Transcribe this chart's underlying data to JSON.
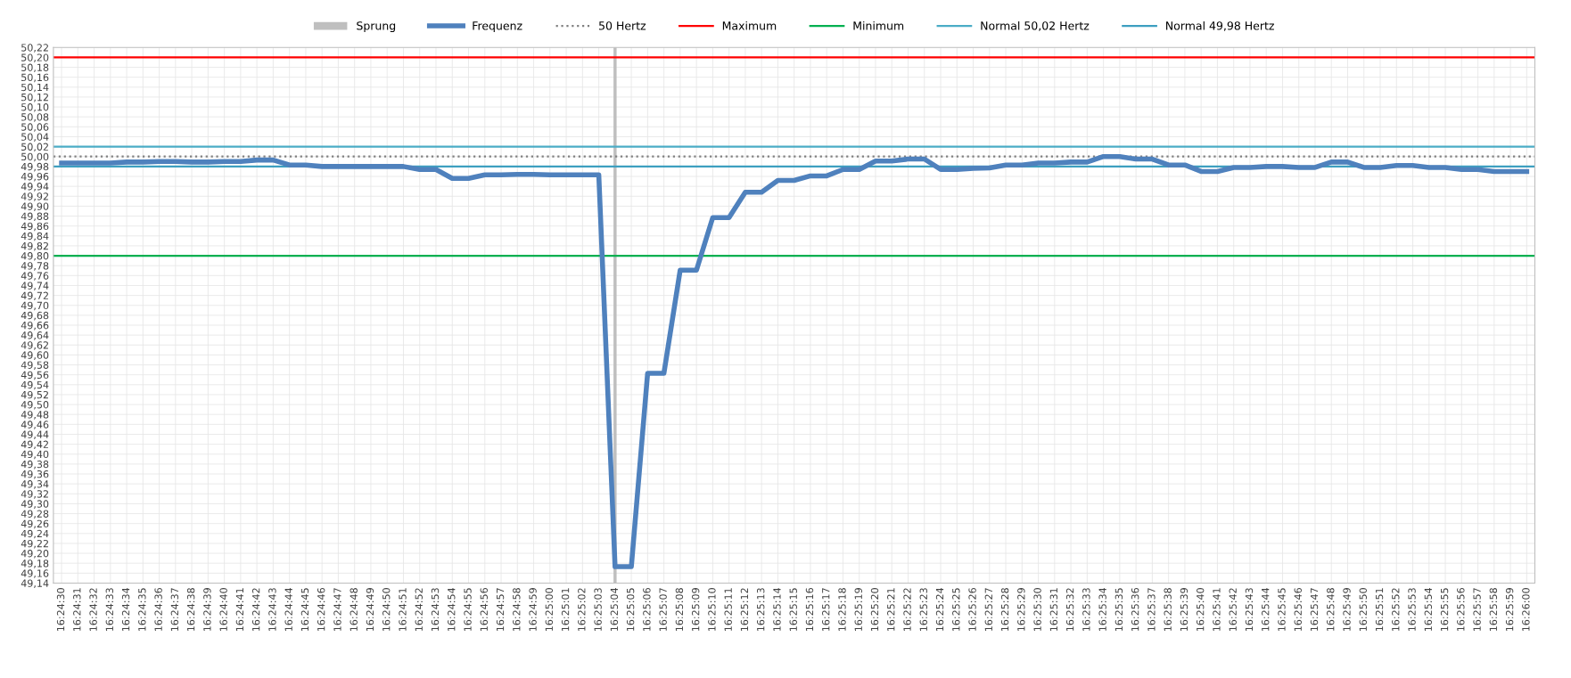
{
  "chart_data": {
    "type": "line",
    "categories": [
      "16:24:30",
      "16:24:31",
      "16:24:32",
      "16:24:33",
      "16:24:34",
      "16:24:35",
      "16:24:36",
      "16:24:37",
      "16:24:38",
      "16:24:39",
      "16:24:40",
      "16:24:41",
      "16:24:42",
      "16:24:43",
      "16:24:44",
      "16:24:45",
      "16:24:46",
      "16:24:47",
      "16:24:48",
      "16:24:49",
      "16:24:50",
      "16:24:51",
      "16:24:52",
      "16:24:53",
      "16:24:54",
      "16:24:55",
      "16:24:56",
      "16:24:57",
      "16:24:58",
      "16:24:59",
      "16:25:00",
      "16:25:01",
      "16:25:02",
      "16:25:03",
      "16:25:04",
      "16:25:05",
      "16:25:06",
      "16:25:07",
      "16:25:08",
      "16:25:09",
      "16:25:10",
      "16:25:11",
      "16:25:12",
      "16:25:13",
      "16:25:14",
      "16:25:15",
      "16:25:16",
      "16:25:17",
      "16:25:18",
      "16:25:19",
      "16:25:20",
      "16:25:21",
      "16:25:22",
      "16:25:23",
      "16:25:24",
      "16:25:25",
      "16:25:26",
      "16:25:27",
      "16:25:28",
      "16:25:29",
      "16:25:30",
      "16:25:31",
      "16:25:32",
      "16:25:33",
      "16:25:34",
      "16:25:35",
      "16:25:36",
      "16:25:37",
      "16:25:38",
      "16:25:39",
      "16:25:40",
      "16:25:41",
      "16:25:42",
      "16:25:43",
      "16:25:44",
      "16:25:45",
      "16:25:46",
      "16:25:47",
      "16:25:48",
      "16:25:49",
      "16:25:50",
      "16:25:51",
      "16:25:52",
      "16:25:53",
      "16:25:54",
      "16:25:55",
      "16:25:56",
      "16:25:57",
      "16:25:58",
      "16:25:59",
      "16:26:00"
    ],
    "series": [
      {
        "name": "Frequenz",
        "color": "#4f81bd",
        "values": [
          49.987,
          49.987,
          49.987,
          49.987,
          49.989,
          49.989,
          49.99,
          49.99,
          49.989,
          49.989,
          49.99,
          49.99,
          49.993,
          49.993,
          49.983,
          49.983,
          49.98,
          49.98,
          49.98,
          49.98,
          49.98,
          49.98,
          49.974,
          49.974,
          49.956,
          49.956,
          49.963,
          49.963,
          49.964,
          49.964,
          49.963,
          49.963,
          49.963,
          49.963,
          49.173,
          49.173,
          49.563,
          49.563,
          49.771,
          49.771,
          49.877,
          49.877,
          49.928,
          49.928,
          49.952,
          49.952,
          49.961,
          49.961,
          49.974,
          49.974,
          49.991,
          49.991,
          49.995,
          49.995,
          49.974,
          49.974,
          49.976,
          49.977,
          49.983,
          49.983,
          49.987,
          49.987,
          49.989,
          49.989,
          50.0,
          50.0,
          49.995,
          49.995,
          49.983,
          49.983,
          49.97,
          49.97,
          49.978,
          49.978,
          49.98,
          49.98,
          49.978,
          49.978,
          49.989,
          49.989,
          49.978,
          49.978,
          49.982,
          49.982,
          49.978,
          49.978,
          49.974,
          49.974,
          49.97,
          49.97,
          49.97
        ]
      }
    ],
    "ref_lines": [
      {
        "axis": "x",
        "value": "16:25:04",
        "label": "Sprung",
        "color": "#bfbfbf"
      },
      {
        "axis": "y",
        "value": 50.0,
        "label": "50 Hertz",
        "color": "#808080",
        "line_style": "dotted"
      },
      {
        "axis": "y",
        "value": 50.2,
        "label": "Maximum",
        "color": "#ff0000"
      },
      {
        "axis": "y",
        "value": 49.8,
        "label": "Minimum",
        "color": "#00b050"
      },
      {
        "axis": "y",
        "value": 50.02,
        "label": "Normal 50,02 Hertz",
        "color": "#4bacc6"
      },
      {
        "axis": "y",
        "value": 49.98,
        "label": "Normal 49,98 Hertz",
        "color": "#3d9fc0"
      }
    ],
    "ylim": [
      49.14,
      50.22
    ],
    "yticks": [
      {
        "value": 49.14,
        "label": "49,14"
      },
      {
        "value": 49.16,
        "label": "49,16"
      },
      {
        "value": 49.18,
        "label": "49,18"
      },
      {
        "value": 49.2,
        "label": "49,20"
      },
      {
        "value": 49.22,
        "label": "49,22"
      },
      {
        "value": 49.24,
        "label": "49,24"
      },
      {
        "value": 49.26,
        "label": "49,26"
      },
      {
        "value": 49.28,
        "label": "49,28"
      },
      {
        "value": 49.3,
        "label": "49,30"
      },
      {
        "value": 49.32,
        "label": "49,32"
      },
      {
        "value": 49.34,
        "label": "49,34"
      },
      {
        "value": 49.36,
        "label": "49,36"
      },
      {
        "value": 49.38,
        "label": "49,38"
      },
      {
        "value": 49.4,
        "label": "49,40"
      },
      {
        "value": 49.42,
        "label": "49,42"
      },
      {
        "value": 49.44,
        "label": "49,44"
      },
      {
        "value": 49.46,
        "label": "49,46"
      },
      {
        "value": 49.48,
        "label": "49,48"
      },
      {
        "value": 49.5,
        "label": "49,50"
      },
      {
        "value": 49.52,
        "label": "49,52"
      },
      {
        "value": 49.54,
        "label": "49,54"
      },
      {
        "value": 49.56,
        "label": "49,56"
      },
      {
        "value": 49.58,
        "label": "49,58"
      },
      {
        "value": 49.6,
        "label": "49,60"
      },
      {
        "value": 49.62,
        "label": "49,62"
      },
      {
        "value": 49.64,
        "label": "49,64"
      },
      {
        "value": 49.66,
        "label": "49,66"
      },
      {
        "value": 49.68,
        "label": "49,68"
      },
      {
        "value": 49.7,
        "label": "49,70"
      },
      {
        "value": 49.72,
        "label": "49,72"
      },
      {
        "value": 49.74,
        "label": "49,74"
      },
      {
        "value": 49.76,
        "label": "49,76"
      },
      {
        "value": 49.78,
        "label": "49,78"
      },
      {
        "value": 49.8,
        "label": "49,80"
      },
      {
        "value": 49.82,
        "label": "49,82"
      },
      {
        "value": 49.84,
        "label": "49,84"
      },
      {
        "value": 49.86,
        "label": "49,86"
      },
      {
        "value": 49.88,
        "label": "49,88"
      },
      {
        "value": 49.9,
        "label": "49,90"
      },
      {
        "value": 49.92,
        "label": "49,92"
      },
      {
        "value": 49.94,
        "label": "49,94"
      },
      {
        "value": 49.96,
        "label": "49,96"
      },
      {
        "value": 49.98,
        "label": "49,98"
      },
      {
        "value": 50.0,
        "label": "50,00"
      },
      {
        "value": 50.02,
        "label": "50,02"
      },
      {
        "value": 50.04,
        "label": "50,04"
      },
      {
        "value": 50.06,
        "label": "50,06"
      },
      {
        "value": 50.08,
        "label": "50,08"
      },
      {
        "value": 50.1,
        "label": "50,10"
      },
      {
        "value": 50.12,
        "label": "50,12"
      },
      {
        "value": 50.14,
        "label": "50,14"
      },
      {
        "value": 50.16,
        "label": "50,16"
      },
      {
        "value": 50.18,
        "label": "50,18"
      },
      {
        "value": 50.2,
        "label": "50,20"
      },
      {
        "value": 50.22,
        "label": "50,22"
      }
    ],
    "grid": true,
    "legend": "top",
    "marker": "none",
    "line_style": "solid"
  }
}
